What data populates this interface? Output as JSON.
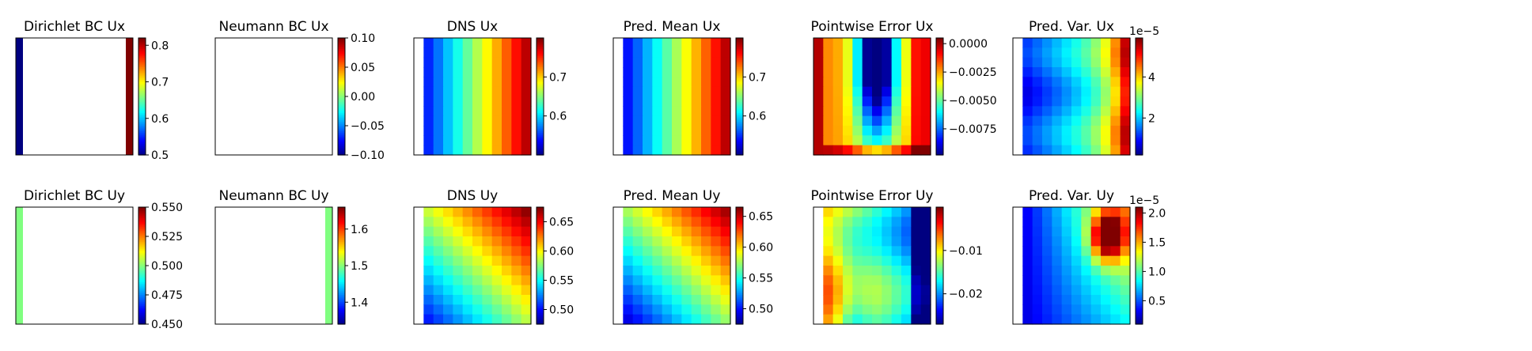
{
  "chart_data": [
    {
      "type": "heatmap",
      "title": "Dirichlet BC Ux",
      "grid": [
        12,
        12
      ],
      "field": "dirichlet_ux",
      "colorbar": {
        "ticks": [
          0.5,
          0.6,
          0.7,
          0.8
        ],
        "tick_labels": [
          "0.5",
          "0.6",
          "0.7",
          "0.8"
        ],
        "range": [
          0.5,
          0.82
        ]
      }
    },
    {
      "type": "heatmap",
      "title": "Neumann BC Ux",
      "grid": [
        12,
        12
      ],
      "field": "blank",
      "colorbar": {
        "ticks": [
          -0.1,
          -0.05,
          0,
          0.05,
          0.1
        ],
        "tick_labels": [
          "−0.10",
          "−0.05",
          "0.00",
          "0.05",
          "0.10"
        ],
        "range": [
          -0.1,
          0.1
        ]
      }
    },
    {
      "type": "heatmap",
      "title": "DNS Ux",
      "grid": [
        12,
        12
      ],
      "field": "dns_ux",
      "colorbar": {
        "ticks": [
          0.6,
          0.7
        ],
        "tick_labels": [
          "0.6",
          "0.7"
        ],
        "range": [
          0.5,
          0.8
        ]
      }
    },
    {
      "type": "heatmap",
      "title": "Pred. Mean Ux",
      "grid": [
        12,
        12
      ],
      "field": "mean_ux",
      "colorbar": {
        "ticks": [
          0.6,
          0.7
        ],
        "tick_labels": [
          "0.6",
          "0.7"
        ],
        "range": [
          0.5,
          0.8
        ]
      }
    },
    {
      "type": "heatmap",
      "title": "Pointwise Error Ux",
      "grid": [
        12,
        12
      ],
      "field": "err_ux",
      "colorbar": {
        "ticks": [
          0,
          -0.0025,
          -0.005,
          -0.0075
        ],
        "tick_labels": [
          "0.0000",
          "−0.0025",
          "−0.0050",
          "−0.0075"
        ],
        "range": [
          -0.0098,
          0.0005
        ]
      }
    },
    {
      "type": "heatmap",
      "title": "Pred. Var. Ux",
      "grid": [
        12,
        12
      ],
      "field": "var_ux",
      "colorbar": {
        "ticks": [
          2,
          4
        ],
        "tick_labels": [
          "2",
          "4"
        ],
        "range": [
          0.2,
          5.9
        ],
        "scale_label": "1e−5"
      }
    },
    {
      "type": "heatmap",
      "title": "Dirichlet BC Uy",
      "grid": [
        12,
        12
      ],
      "field": "dirichlet_uy",
      "colorbar": {
        "ticks": [
          0.45,
          0.475,
          0.5,
          0.525,
          0.55
        ],
        "tick_labels": [
          "0.450",
          "0.475",
          "0.500",
          "0.525",
          "0.550"
        ],
        "range": [
          0.45,
          0.55
        ]
      }
    },
    {
      "type": "heatmap",
      "title": "Neumann BC Uy",
      "grid": [
        12,
        12
      ],
      "field": "neumann_uy",
      "colorbar": {
        "ticks": [
          1.4,
          1.5,
          1.6
        ],
        "tick_labels": [
          "1.4",
          "1.5",
          "1.6"
        ],
        "range": [
          1.34,
          1.66
        ]
      }
    },
    {
      "type": "heatmap",
      "title": "DNS Uy",
      "grid": [
        12,
        12
      ],
      "field": "dns_uy",
      "colorbar": {
        "ticks": [
          0.5,
          0.55,
          0.6,
          0.65
        ],
        "tick_labels": [
          "0.50",
          "0.55",
          "0.60",
          "0.65"
        ],
        "range": [
          0.475,
          0.675
        ]
      }
    },
    {
      "type": "heatmap",
      "title": "Pred. Mean Uy",
      "grid": [
        12,
        12
      ],
      "field": "mean_uy",
      "colorbar": {
        "ticks": [
          0.5,
          0.55,
          0.6,
          0.65
        ],
        "tick_labels": [
          "0.50",
          "0.55",
          "0.60",
          "0.65"
        ],
        "range": [
          0.475,
          0.665
        ]
      }
    },
    {
      "type": "heatmap",
      "title": "Pointwise Error Uy",
      "grid": [
        12,
        12
      ],
      "field": "err_uy",
      "colorbar": {
        "ticks": [
          -0.01,
          -0.02
        ],
        "tick_labels": [
          "−0.01",
          "−0.02"
        ],
        "range": [
          -0.027,
          0.0
        ]
      }
    },
    {
      "type": "heatmap",
      "title": "Pred. Var. Uy",
      "grid": [
        12,
        12
      ],
      "field": "var_uy",
      "colorbar": {
        "ticks": [
          0.5,
          1,
          1.5,
          2
        ],
        "tick_labels": [
          "0.5",
          "1.0",
          "1.5",
          "2.0"
        ],
        "range": [
          0.1,
          2.1
        ],
        "scale_label": "1e−5"
      }
    }
  ],
  "colormap": "jet"
}
